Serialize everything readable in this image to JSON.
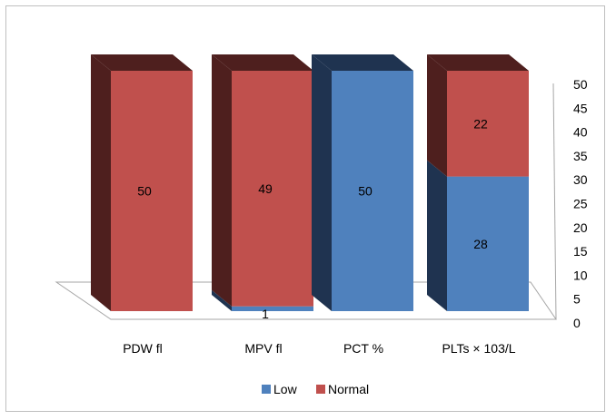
{
  "chart_data": {
    "type": "bar",
    "stacked": true,
    "three_d": true,
    "categories": [
      "PDW fl",
      "MPV fl",
      "PCT %",
      "PLTs × 103/L"
    ],
    "series": [
      {
        "name": "Low",
        "color": "#4F81BD",
        "side_color": "#1F3350",
        "values": [
          0,
          1,
          50,
          28
        ]
      },
      {
        "name": "Normal",
        "color": "#C0504D",
        "side_color": "#4E1F1E",
        "values": [
          50,
          49,
          0,
          22
        ]
      }
    ],
    "data_labels": [
      {
        "category": "PDW fl",
        "series": "Normal",
        "text": "50"
      },
      {
        "category": "MPV fl",
        "series": "Normal",
        "text": "49"
      },
      {
        "category": "MPV fl",
        "series": "Low",
        "text": "1"
      },
      {
        "category": "PCT %",
        "series": "Low",
        "text": "50"
      },
      {
        "category": "PLTs × 103/L",
        "series": "Normal",
        "text": "22"
      },
      {
        "category": "PLTs × 103/L",
        "series": "Low",
        "text": "28"
      }
    ],
    "y_axis": {
      "position": "right",
      "min": 0,
      "max": 50,
      "ticks": [
        "0",
        "5",
        "10",
        "15",
        "20",
        "25",
        "30",
        "35",
        "40",
        "45",
        "50"
      ]
    },
    "grid": false,
    "legend_position": "bottom",
    "title": "",
    "xlabel": "",
    "ylabel": ""
  }
}
